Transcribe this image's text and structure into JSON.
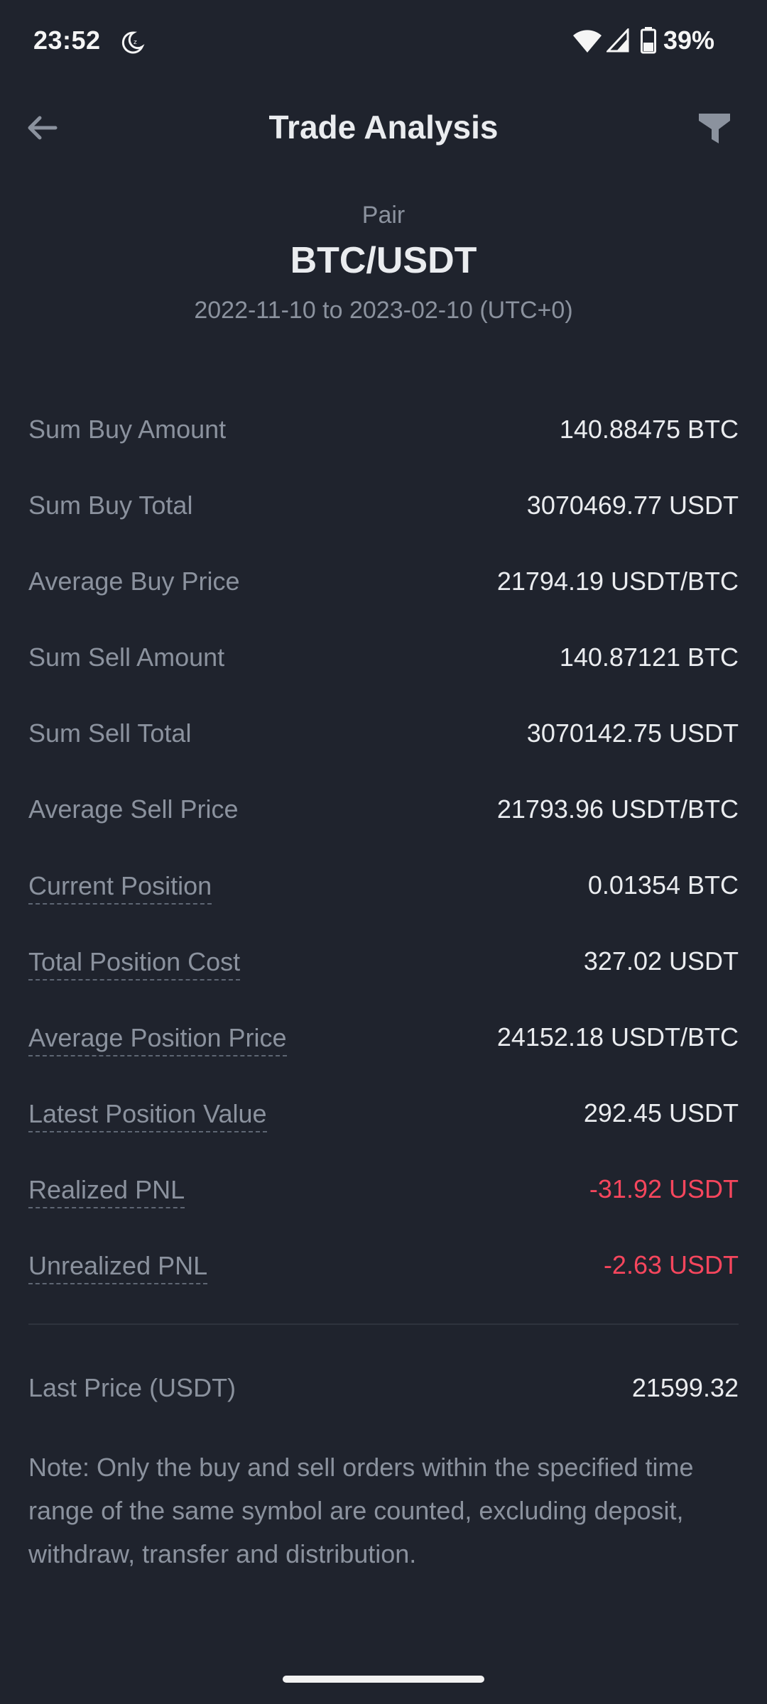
{
  "status_bar": {
    "time": "23:52",
    "battery": "39%",
    "icons": [
      "moon-icon",
      "wifi-icon",
      "signal-icon",
      "battery-icon"
    ]
  },
  "header": {
    "title": "Trade Analysis",
    "back_icon": "arrow-left-icon",
    "filter_icon": "filter-icon"
  },
  "pair": {
    "label": "Pair",
    "name": "BTC/USDT",
    "range": "2022-11-10 to 2023-02-10 (UTC+0)"
  },
  "stats": [
    {
      "label": "Sum Buy Amount",
      "value": "140.88475 BTC",
      "dotted": false,
      "negative": false
    },
    {
      "label": "Sum Buy Total",
      "value": "3070469.77 USDT",
      "dotted": false,
      "negative": false
    },
    {
      "label": "Average Buy Price",
      "value": "21794.19 USDT/BTC",
      "dotted": false,
      "negative": false
    },
    {
      "label": "Sum Sell Amount",
      "value": "140.87121 BTC",
      "dotted": false,
      "negative": false
    },
    {
      "label": "Sum Sell Total",
      "value": "3070142.75 USDT",
      "dotted": false,
      "negative": false
    },
    {
      "label": "Average Sell Price",
      "value": "21793.96 USDT/BTC",
      "dotted": false,
      "negative": false
    },
    {
      "label": "Current Position",
      "value": "0.01354 BTC",
      "dotted": true,
      "negative": false
    },
    {
      "label": "Total Position Cost",
      "value": "327.02 USDT",
      "dotted": true,
      "negative": false
    },
    {
      "label": "Average Position Price",
      "value": "24152.18 USDT/BTC",
      "dotted": true,
      "negative": false
    },
    {
      "label": "Latest Position Value",
      "value": "292.45 USDT",
      "dotted": true,
      "negative": false
    },
    {
      "label": "Realized PNL",
      "value": "-31.92 USDT",
      "dotted": true,
      "negative": true
    },
    {
      "label": "Unrealized PNL",
      "value": "-2.63 USDT",
      "dotted": true,
      "negative": true
    }
  ],
  "last_price": {
    "label": "Last Price (USDT)",
    "value": "21599.32"
  },
  "note": "Note: Only the buy and sell orders within the specified time range of the same symbol are counted, excluding deposit, withdraw, transfer and distribution.",
  "colors": {
    "background": "#1f232d",
    "negative": "#f6465d",
    "muted": "#8b929e",
    "primary_text": "#eaecef"
  }
}
